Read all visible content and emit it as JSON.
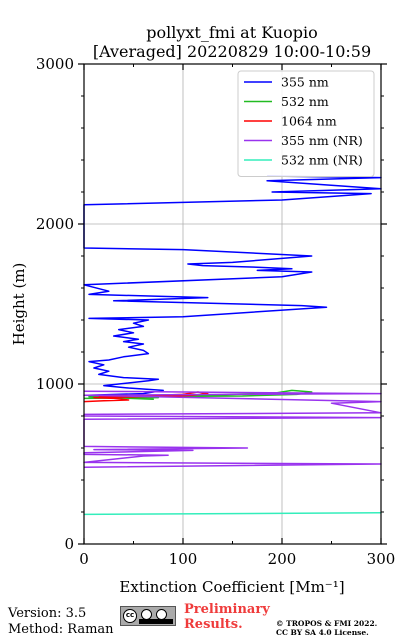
{
  "chart_data": {
    "type": "line",
    "title": "pollyxt_fmi at Kuopio",
    "subtitle": "[Averaged] 20220829 10:00-10:59",
    "xlabel": "Extinction Coefficient [Mm⁻¹]",
    "ylabel": "Height (m)",
    "xlim": [
      0,
      300
    ],
    "ylim": [
      0,
      3000
    ],
    "xticks": [
      "0",
      "100",
      "200",
      "300"
    ],
    "yticks": [
      "0",
      "1000",
      "2000",
      "3000"
    ],
    "grid": true,
    "legend_position": "top-right",
    "series": [
      {
        "name": "355 nm",
        "color": "#0000ff",
        "points": [
          [
            5,
            930
          ],
          [
            60,
            940
          ],
          [
            80,
            960
          ],
          [
            45,
            975
          ],
          [
            20,
            990
          ],
          [
            65,
            1020
          ],
          [
            75,
            1030
          ],
          [
            40,
            1040
          ],
          [
            15,
            1060
          ],
          [
            25,
            1080
          ],
          [
            10,
            1100
          ],
          [
            20,
            1120
          ],
          [
            5,
            1140
          ],
          [
            25,
            1150
          ],
          [
            40,
            1170
          ],
          [
            65,
            1190
          ],
          [
            60,
            1210
          ],
          [
            45,
            1230
          ],
          [
            60,
            1250
          ],
          [
            40,
            1265
          ],
          [
            55,
            1280
          ],
          [
            30,
            1300
          ],
          [
            50,
            1320
          ],
          [
            35,
            1340
          ],
          [
            60,
            1360
          ],
          [
            50,
            1380
          ],
          [
            65,
            1400
          ],
          [
            5,
            1410
          ],
          [
            100,
            1420
          ],
          [
            245,
            1480
          ],
          [
            220,
            1490
          ],
          [
            30,
            1520
          ],
          [
            125,
            1540
          ],
          [
            5,
            1560
          ],
          [
            25,
            1580
          ],
          [
            0,
            1620
          ],
          [
            200,
            1670
          ],
          [
            230,
            1700
          ],
          [
            175,
            1710
          ],
          [
            210,
            1720
          ],
          [
            175,
            1730
          ],
          [
            120,
            1740
          ],
          [
            105,
            1750
          ],
          [
            150,
            1760
          ],
          [
            230,
            1800
          ],
          [
            100,
            1840
          ],
          [
            0,
            1850
          ],
          [
            0,
            2120
          ],
          [
            200,
            2150
          ],
          [
            290,
            2190
          ],
          [
            190,
            2200
          ],
          [
            300,
            2220
          ],
          [
            185,
            2270
          ],
          [
            300,
            2290
          ],
          [
            185,
            2300
          ]
        ]
      },
      {
        "name": "532 nm",
        "color": "#22bb22",
        "points": [
          [
            0,
            910
          ],
          [
            75,
            915
          ],
          [
            25,
            920
          ],
          [
            70,
            905
          ],
          [
            5,
            920
          ],
          [
            160,
            925
          ],
          [
            215,
            935
          ],
          [
            230,
            950
          ],
          [
            210,
            960
          ],
          [
            195,
            945
          ],
          [
            125,
            930
          ],
          [
            40,
            925
          ]
        ]
      },
      {
        "name": "1064 nm",
        "color": "#ff0000",
        "points": [
          [
            0,
            890
          ],
          [
            20,
            895
          ],
          [
            45,
            900
          ],
          [
            30,
            910
          ],
          [
            10,
            915
          ],
          [
            55,
            920
          ],
          [
            90,
            925
          ],
          [
            110,
            930
          ],
          [
            125,
            940
          ],
          [
            115,
            950
          ],
          [
            100,
            935
          ],
          [
            75,
            930
          ],
          [
            40,
            925
          ],
          [
            15,
            920
          ]
        ]
      },
      {
        "name": "355 nm (NR)",
        "color": "#9933ee",
        "points": [
          [
            0,
            480
          ],
          [
            300,
            500
          ],
          [
            0,
            510
          ],
          [
            60,
            550
          ],
          [
            85,
            555
          ],
          [
            0,
            560
          ],
          [
            0,
            570
          ],
          [
            110,
            585
          ],
          [
            10,
            590
          ],
          [
            165,
            600
          ],
          [
            0,
            610
          ],
          [
            0,
            780
          ],
          [
            300,
            790
          ],
          [
            0,
            800
          ],
          [
            0,
            810
          ],
          [
            300,
            820
          ],
          [
            250,
            880
          ],
          [
            300,
            890
          ],
          [
            0,
            930
          ],
          [
            300,
            940
          ],
          [
            0,
            955
          ]
        ]
      },
      {
        "name": "532 nm (NR)",
        "color": "#33eebb",
        "points": [
          [
            0,
            185
          ],
          [
            300,
            195
          ]
        ]
      }
    ]
  },
  "footer": {
    "version": "Version: 3.5",
    "method": "Method: Raman",
    "preliminary_line1": "Preliminary",
    "preliminary_line2": "Results.",
    "copyright_line1": "© TROPOS & FMI 2022.",
    "copyright_line2": "CC BY SA 4.0 License.",
    "license_badge": "cc by sa"
  }
}
